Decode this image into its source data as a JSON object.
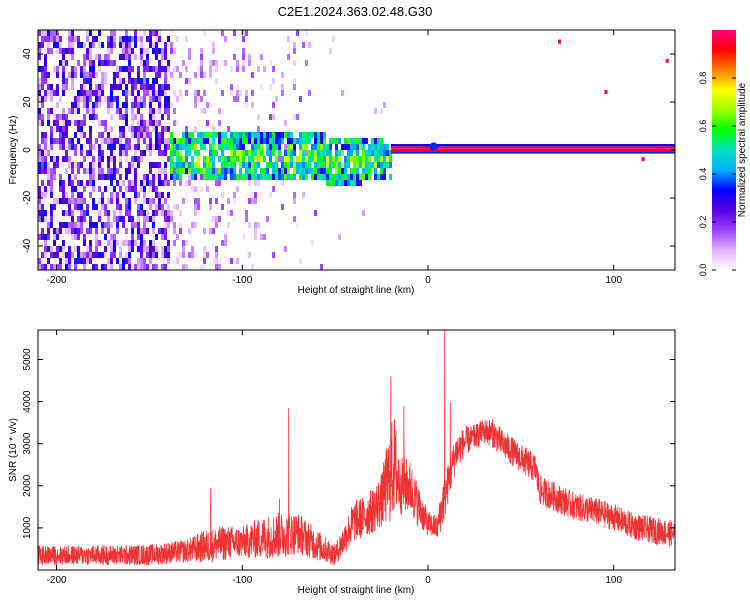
{
  "title": "C2E1.2024.363.02.48.G30",
  "chart_data": [
    {
      "type": "heatmap",
      "xlabel": "Height of straight line (km)",
      "ylabel": "Frequency (Hz)",
      "xlim": [
        -210,
        133
      ],
      "ylim": [
        -50,
        50
      ],
      "xticks": [
        -200,
        -100,
        0,
        100
      ],
      "xtick_labels": [
        "-200",
        "-100",
        "0",
        "100"
      ],
      "yticks": [
        -40,
        -20,
        0,
        20,
        40
      ],
      "ytick_labels": [
        "-40",
        "-20",
        "0",
        "20",
        "40"
      ],
      "colorbar": {
        "label": "Normalized spectral amplitude",
        "range": [
          0,
          1
        ],
        "ticks": [
          0.0,
          0.2,
          0.4,
          0.6,
          0.8
        ],
        "tick_labels": [
          "0.0",
          "0.2",
          "0.4",
          "0.6",
          "0.8"
        ],
        "colormap": [
          "#ffffff",
          "#e0b0ff",
          "#9a40ff",
          "#5a00e0",
          "#0000ff",
          "#00b0ff",
          "#00e0c0",
          "#00ff00",
          "#a0ff00",
          "#ffff00",
          "#ff8000",
          "#ff0000",
          "#ff0080"
        ]
      },
      "regions": [
        {
          "description": "sparse low-amplitude purple noise",
          "x": [
            -210,
            -140
          ],
          "freq": [
            -50,
            50
          ],
          "amplitude": [
            0.05,
            0.3
          ]
        },
        {
          "description": "faded sparse noise",
          "x": [
            -140,
            -55
          ],
          "freq": [
            -50,
            50
          ],
          "amplitude": [
            0.02,
            0.15
          ]
        },
        {
          "description": "blue/cyan blob around 0 Hz",
          "x": [
            -140,
            -20
          ],
          "freq": [
            -12,
            8
          ],
          "amplitude": [
            0.2,
            0.6
          ]
        },
        {
          "description": "narrow line at ~0 Hz",
          "x": [
            -20,
            133
          ],
          "freq": [
            -1.5,
            2.5
          ],
          "amplitude": [
            0.6,
            1.0
          ]
        }
      ],
      "grid": false
    },
    {
      "type": "line",
      "xlabel": "Height of straight line (km)",
      "ylabel": "SNR (10 * v/v)",
      "xlim": [
        -210,
        133
      ],
      "ylim": [
        0,
        5700
      ],
      "xticks": [
        -200,
        -100,
        0,
        100
      ],
      "xtick_labels": [
        "-200",
        "-100",
        "0",
        "100"
      ],
      "yticks": [
        1000,
        2000,
        3000,
        4000,
        5000
      ],
      "ytick_labels": [
        "1000",
        "2000",
        "3000",
        "4000",
        "5000"
      ],
      "series": [
        {
          "color": "#ee3333",
          "x": [
            -210,
            -180,
            -150,
            -130,
            -120,
            -110,
            -100,
            -90,
            -80,
            -70,
            -60,
            -50,
            -40,
            -35,
            -30,
            -25,
            -20,
            -18,
            -15,
            -10,
            -5,
            0,
            5,
            8,
            10,
            15,
            20,
            25,
            30,
            35,
            40,
            50,
            58,
            60,
            70,
            80,
            90,
            100,
            110,
            120,
            133
          ],
          "y": [
            350,
            350,
            360,
            450,
            560,
            640,
            660,
            760,
            820,
            880,
            600,
            360,
            1150,
            1250,
            1400,
            1650,
            2300,
            2500,
            2000,
            2000,
            1500,
            1100,
            1000,
            1600,
            1900,
            2800,
            3050,
            3150,
            3300,
            3250,
            3000,
            2650,
            2400,
            1900,
            1700,
            1500,
            1400,
            1250,
            1050,
            950,
            850
          ],
          "noise": [
            230,
            240,
            250,
            280,
            400,
            420,
            380,
            500,
            550,
            500,
            380,
            260,
            500,
            500,
            550,
            650,
            1200,
            1200,
            700,
            650,
            500,
            300,
            300,
            600,
            500,
            450,
            350,
            300,
            300,
            350,
            350,
            350,
            350,
            350,
            350,
            330,
            330,
            320,
            320,
            320,
            320
          ],
          "spikes": [
            {
              "x": -117,
              "y": 1950
            },
            {
              "x": -80,
              "y": 1700
            },
            {
              "x": -75,
              "y": 3850
            },
            {
              "x": -20,
              "y": 4600
            },
            {
              "x": -13,
              "y": 3900
            },
            {
              "x": 9,
              "y": 5700
            },
            {
              "x": 12,
              "y": 4000
            }
          ]
        }
      ],
      "grid": false
    }
  ]
}
